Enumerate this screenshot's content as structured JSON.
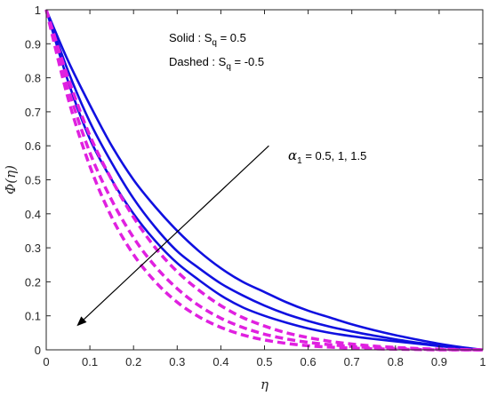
{
  "chart_data": {
    "type": "line",
    "title": "",
    "xlabel": "η",
    "ylabel": "Φ(η)",
    "xlim": [
      0,
      1
    ],
    "ylim": [
      0,
      1
    ],
    "xticks": [
      0,
      0.1,
      0.2,
      0.3,
      0.4,
      0.5,
      0.6,
      0.7,
      0.8,
      0.9,
      1
    ],
    "yticks": [
      0,
      0.1,
      0.2,
      0.3,
      0.4,
      0.5,
      0.6,
      0.7,
      0.8,
      0.9,
      1
    ],
    "grid": false,
    "legend_text": {
      "solid": "Solid    : S",
      "solid_sub": "q",
      "solid_value": " = 0.5",
      "dashed": "Dashed : S",
      "dashed_sub": "q",
      "dashed_value": " = -0.5"
    },
    "annotation": {
      "symbol": "α",
      "sub": "1",
      "text": " = 0.5, 1, 1.5",
      "arrow_from": [
        0.51,
        0.6
      ],
      "arrow_to": [
        0.07,
        0.07
      ]
    },
    "x": [
      0,
      0.05,
      0.1,
      0.15,
      0.2,
      0.25,
      0.3,
      0.35,
      0.4,
      0.45,
      0.5,
      0.55,
      0.6,
      0.65,
      0.7,
      0.75,
      0.8,
      0.85,
      0.9,
      0.95,
      1
    ],
    "series": [
      {
        "style": "solid",
        "color": "#1010e0",
        "values": [
          1,
          0.85,
          0.72,
          0.6,
          0.5,
          0.42,
          0.35,
          0.29,
          0.24,
          0.2,
          0.17,
          0.14,
          0.115,
          0.095,
          0.075,
          0.058,
          0.043,
          0.03,
          0.018,
          0.008,
          0
        ]
      },
      {
        "style": "solid",
        "color": "#1010e0",
        "values": [
          1,
          0.82,
          0.67,
          0.55,
          0.445,
          0.36,
          0.29,
          0.24,
          0.195,
          0.16,
          0.13,
          0.105,
          0.085,
          0.068,
          0.054,
          0.042,
          0.031,
          0.021,
          0.013,
          0.006,
          0
        ]
      },
      {
        "style": "solid",
        "color": "#1010e0",
        "values": [
          1,
          0.79,
          0.62,
          0.5,
          0.4,
          0.32,
          0.255,
          0.205,
          0.16,
          0.125,
          0.1,
          0.08,
          0.063,
          0.05,
          0.04,
          0.032,
          0.025,
          0.018,
          0.011,
          0.005,
          0
        ]
      },
      {
        "style": "dashed",
        "color": "#e020e0",
        "values": [
          1,
          0.8,
          0.63,
          0.5,
          0.39,
          0.3,
          0.23,
          0.175,
          0.13,
          0.095,
          0.07,
          0.05,
          0.036,
          0.025,
          0.017,
          0.011,
          0.007,
          0.004,
          0.002,
          0.001,
          0
        ]
      },
      {
        "style": "dashed",
        "color": "#e020e0",
        "values": [
          1,
          0.77,
          0.58,
          0.44,
          0.33,
          0.245,
          0.18,
          0.13,
          0.093,
          0.066,
          0.046,
          0.032,
          0.022,
          0.015,
          0.01,
          0.006,
          0.004,
          0.002,
          0.001,
          0,
          0
        ]
      },
      {
        "style": "dashed",
        "color": "#e020e0",
        "values": [
          1,
          0.74,
          0.54,
          0.39,
          0.28,
          0.2,
          0.14,
          0.097,
          0.066,
          0.044,
          0.029,
          0.019,
          0.012,
          0.008,
          0.005,
          0.003,
          0.002,
          0.001,
          0,
          0,
          0
        ]
      }
    ]
  }
}
